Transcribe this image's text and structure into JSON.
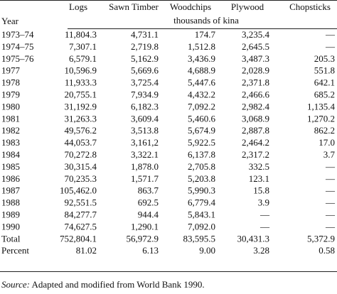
{
  "header": {
    "columns": [
      "Logs",
      "Sawn Timber",
      "Woodchips",
      "Plywood",
      "Chopsticks"
    ],
    "year_label": "Year",
    "units": "thousands of kina"
  },
  "table": {
    "rows": [
      [
        "1973–74",
        "11,804.3",
        "4,731.1",
        "174.7",
        "3,235.4",
        "—"
      ],
      [
        "1974–75",
        "7,307.1",
        "2,719.8",
        "1,512.8",
        "2,645.5",
        "—"
      ],
      [
        "1975–76",
        "6,579.1",
        "5,162.9",
        "3,436.9",
        "3,487.3",
        "205.3"
      ],
      [
        "1977",
        "10,596.9",
        "5,669.6",
        "4,688.9",
        "2,028.9",
        "551.8"
      ],
      [
        "1978",
        "11,933.3",
        "3,725.4",
        "5,447.6",
        "2,371.8",
        "642.1"
      ],
      [
        "1979",
        "20,755.1",
        "7,934.9",
        "4,432.2",
        "2,466.6",
        "685.2"
      ],
      [
        "1980",
        "31,192.9",
        "6,182.3",
        "7,092.2",
        "2,982.4",
        "1,135.4"
      ],
      [
        "1981",
        "31,263.3",
        "3,609.4",
        "5,460.6",
        "3,068.9",
        "1,270.2"
      ],
      [
        "1982",
        "49,576.2",
        "3,513.8",
        "5,674.9",
        "2,887.8",
        "862.2"
      ],
      [
        "1983",
        "44,053.7",
        "3,161,2",
        "5,922.5",
        "2,464.2",
        "17.0"
      ],
      [
        "1984",
        "70,272.8",
        "3,322.1",
        "6,137.8",
        "2,317.2",
        "3.7"
      ],
      [
        "1985",
        "30,315.4",
        "1,878.0",
        "2,705.8",
        "332.5",
        "—"
      ],
      [
        "1986",
        "70,235.3",
        "1,571.7",
        "5,203.8",
        "123.1",
        "—"
      ],
      [
        "1987",
        "105,462.0",
        "863.7",
        "5,990.3",
        "15.8",
        "—"
      ],
      [
        "1988",
        "92,551.5",
        "692.5",
        "6,779.4",
        "3.9",
        "—"
      ],
      [
        "1989",
        "84,277.7",
        "944.4",
        "5,843.1",
        "—",
        "—"
      ],
      [
        "1990",
        "74,627.5",
        "1,290.1",
        "7,092.0",
        "—",
        "—"
      ],
      [
        "Total",
        "752,804.1",
        "56,972.9",
        "83,595.5",
        "30,431.3",
        "5,372.9"
      ],
      [
        "Percent",
        "81.02",
        "6.13",
        "9.00",
        "3.28",
        "0.58"
      ]
    ]
  },
  "source": {
    "label": "Source:",
    "text": "Adapted and modified from World Bank 1990."
  }
}
